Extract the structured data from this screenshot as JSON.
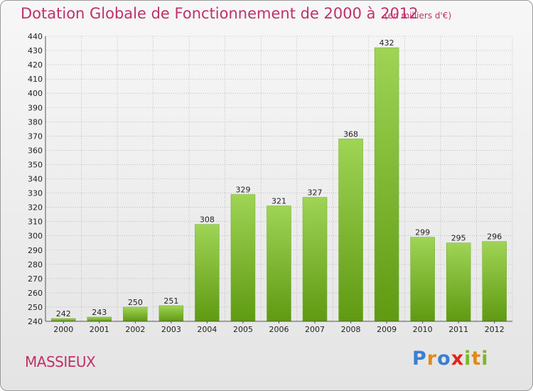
{
  "header": {
    "title": "Dotation Globale de Fonctionnement de 2000 à 2012",
    "unit_note": "(en milliers d'€)"
  },
  "footer": {
    "commune": "MASSIEUX",
    "brand": "Proxiti",
    "brand_letters": [
      "P",
      "r",
      "o",
      "x",
      "i",
      "t",
      "i"
    ]
  },
  "colors": {
    "title": "#c0306a",
    "bar_top": "#9fd455",
    "bar_bottom": "#5f9a12",
    "grid": "#a0a0a0",
    "brand_letters": [
      "#3a7fd0",
      "#e08a1a",
      "#3a7fd0",
      "#e0251f",
      "#7ab828",
      "#e08a1a",
      "#7ab828"
    ]
  },
  "chart_data": {
    "type": "bar",
    "title": "Dotation Globale de Fonctionnement de 2000 à 2012",
    "subtitle": "(en milliers d'€)",
    "xlabel": "",
    "ylabel": "",
    "categories": [
      "2000",
      "2001",
      "2002",
      "2003",
      "2004",
      "2005",
      "2006",
      "2007",
      "2008",
      "2009",
      "2010",
      "2011",
      "2012"
    ],
    "values": [
      242,
      243,
      250,
      251,
      308,
      329,
      321,
      327,
      368,
      432,
      299,
      295,
      296
    ],
    "ylim": [
      240,
      440
    ],
    "ytick_step": 10,
    "grid": true,
    "legend": "none"
  }
}
